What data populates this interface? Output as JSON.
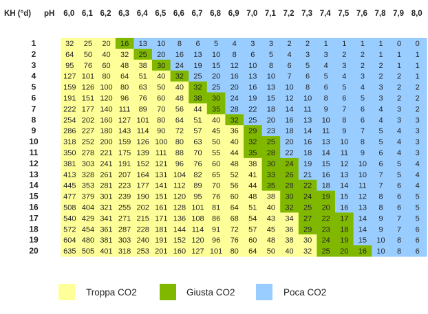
{
  "chart_data": {
    "type": "heatmap",
    "corner_label": "KH (°d)",
    "x_title": "pH",
    "x": [
      "6,0",
      "6,1",
      "6,2",
      "6,3",
      "6,4",
      "6,5",
      "6,6",
      "6,7",
      "6,8",
      "6,9",
      "7,0",
      "7,1",
      "7,2",
      "7,3",
      "7,4",
      "7,5",
      "7,6",
      "7,8",
      "7,9",
      "8,0"
    ],
    "y": [
      "1",
      "2",
      "3",
      "4",
      "5",
      "6",
      "7",
      "8",
      "9",
      "10",
      "11",
      "12",
      "13",
      "14",
      "15",
      "16",
      "17",
      "18",
      "19",
      "20"
    ],
    "values": [
      [
        32,
        25,
        20,
        16,
        13,
        10,
        8,
        6,
        5,
        4,
        3,
        3,
        2,
        2,
        1,
        1,
        1,
        1,
        0,
        0
      ],
      [
        64,
        50,
        40,
        32,
        25,
        20,
        16,
        13,
        10,
        8,
        6,
        5,
        4,
        3,
        3,
        2,
        2,
        1,
        1,
        1
      ],
      [
        95,
        76,
        60,
        48,
        38,
        30,
        24,
        19,
        15,
        12,
        10,
        8,
        6,
        5,
        4,
        3,
        2,
        2,
        1,
        1
      ],
      [
        127,
        101,
        80,
        64,
        51,
        40,
        32,
        25,
        20,
        16,
        13,
        10,
        7,
        6,
        5,
        4,
        3,
        2,
        2,
        1
      ],
      [
        159,
        126,
        100,
        80,
        63,
        50,
        40,
        32,
        25,
        20,
        16,
        13,
        10,
        8,
        6,
        5,
        4,
        3,
        2,
        2
      ],
      [
        191,
        151,
        120,
        96,
        76,
        60,
        48,
        38,
        30,
        24,
        19,
        15,
        12,
        10,
        8,
        6,
        5,
        3,
        2,
        2
      ],
      [
        222,
        177,
        140,
        111,
        89,
        70,
        56,
        44,
        35,
        28,
        22,
        18,
        14,
        11,
        9,
        7,
        6,
        4,
        3,
        2
      ],
      [
        254,
        202,
        160,
        127,
        101,
        80,
        64,
        51,
        40,
        32,
        25,
        20,
        16,
        13,
        10,
        8,
        6,
        4,
        3,
        3
      ],
      [
        286,
        227,
        180,
        143,
        114,
        90,
        72,
        57,
        45,
        36,
        29,
        23,
        18,
        14,
        11,
        9,
        7,
        5,
        4,
        3
      ],
      [
        318,
        252,
        200,
        159,
        126,
        100,
        80,
        63,
        50,
        40,
        32,
        25,
        20,
        16,
        13,
        10,
        8,
        5,
        4,
        3
      ],
      [
        350,
        278,
        221,
        175,
        139,
        111,
        88,
        70,
        55,
        44,
        35,
        28,
        22,
        18,
        14,
        11,
        9,
        6,
        4,
        3
      ],
      [
        381,
        303,
        241,
        191,
        152,
        121,
        96,
        76,
        60,
        48,
        38,
        30,
        24,
        19,
        15,
        12,
        10,
        6,
        5,
        4
      ],
      [
        413,
        328,
        261,
        207,
        164,
        131,
        104,
        82,
        65,
        52,
        41,
        33,
        26,
        21,
        16,
        13,
        10,
        7,
        5,
        4
      ],
      [
        445,
        353,
        281,
        223,
        177,
        141,
        112,
        89,
        70,
        56,
        44,
        35,
        28,
        22,
        18,
        14,
        11,
        7,
        6,
        4
      ],
      [
        477,
        379,
        301,
        239,
        190,
        151,
        120,
        95,
        76,
        60,
        48,
        38,
        30,
        24,
        19,
        15,
        12,
        8,
        6,
        5
      ],
      [
        508,
        404,
        321,
        255,
        202,
        161,
        128,
        101,
        81,
        64,
        51,
        40,
        32,
        25,
        20,
        16,
        13,
        8,
        6,
        5
      ],
      [
        540,
        429,
        341,
        271,
        215,
        171,
        136,
        108,
        86,
        68,
        54,
        43,
        34,
        27,
        22,
        17,
        14,
        9,
        7,
        5
      ],
      [
        572,
        454,
        361,
        287,
        228,
        181,
        144,
        114,
        91,
        72,
        57,
        45,
        36,
        29,
        23,
        18,
        14,
        9,
        7,
        6
      ],
      [
        604,
        480,
        381,
        303,
        240,
        191,
        152,
        120,
        96,
        76,
        60,
        48,
        38,
        30,
        24,
        19,
        15,
        10,
        8,
        6
      ],
      [
        635,
        505,
        401,
        318,
        253,
        201,
        160,
        127,
        101,
        80,
        64,
        50,
        40,
        32,
        25,
        20,
        16,
        10,
        8,
        6
      ]
    ],
    "categories_by_cell": "values > 32 → Troppa CO2; 16 ≤ values ≤ 32 (green band, starting point per row) → Giusta CO2; values below band → Poca CO2",
    "band_start_col": [
      3,
      4,
      5,
      6,
      7,
      7,
      8,
      9,
      10,
      10,
      10,
      11,
      11,
      11,
      12,
      12,
      13,
      13,
      14,
      14
    ],
    "band_end_col": [
      3,
      4,
      5,
      6,
      7,
      8,
      8,
      9,
      10,
      11,
      11,
      12,
      12,
      13,
      14,
      14,
      15,
      15,
      15,
      16
    ],
    "legend": [
      {
        "label": "Troppa CO2",
        "color": "#ffff99"
      },
      {
        "label": "Giusta CO2",
        "color": "#80b800"
      },
      {
        "label": "Poca CO2",
        "color": "#99ccff"
      }
    ],
    "legend_position": "bottom",
    "grid": false
  }
}
